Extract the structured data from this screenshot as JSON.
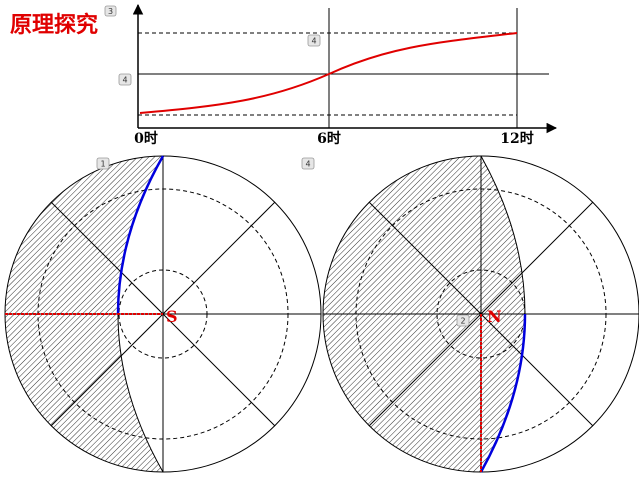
{
  "title": "原理探究",
  "badges": [
    "3",
    "4",
    "4",
    "1",
    "4",
    "2"
  ],
  "graph": {
    "x_labels": [
      "0时",
      "6时",
      "12时"
    ]
  },
  "circles": [
    {
      "pole_label": "S"
    },
    {
      "pole_label": "N"
    }
  ]
}
